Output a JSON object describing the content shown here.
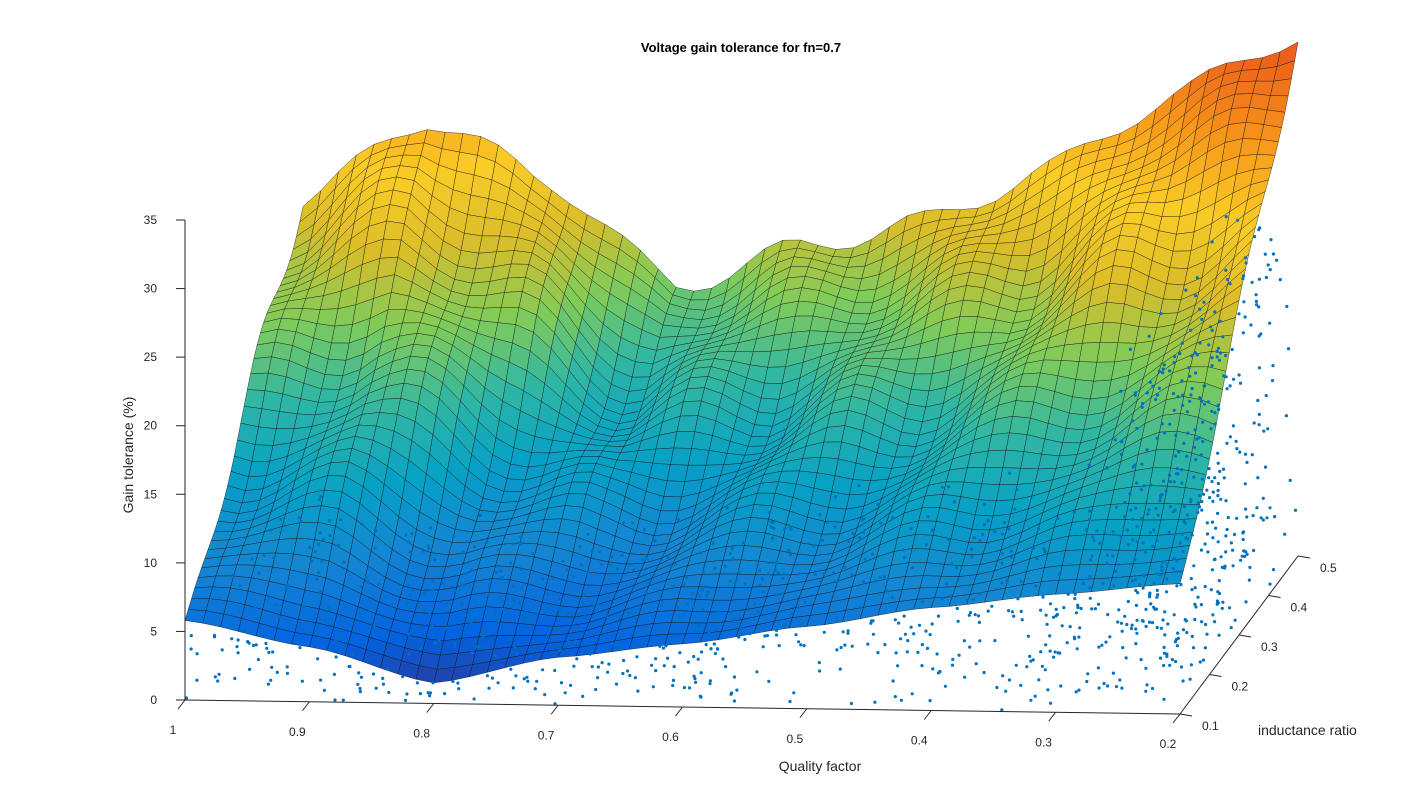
{
  "chart_data": {
    "type": "surface",
    "title": "Voltage gain tolerance for fn=0.7",
    "xlabel": "Quality factor",
    "ylabel": "inductance ratio",
    "zlabel": "Gain tolerance (%)",
    "x_ticks": [
      "1",
      "0.9",
      "0.8",
      "0.7",
      "0.6",
      "0.5",
      "0.4",
      "0.3",
      "0.2"
    ],
    "y_ticks": [
      "0.1",
      "0.2",
      "0.3",
      "0.4",
      "0.5"
    ],
    "z_ticks": [
      "0",
      "5",
      "10",
      "15",
      "20",
      "25",
      "30",
      "35"
    ],
    "xlim": [
      0.2,
      1.0
    ],
    "ylim": [
      0.1,
      0.5
    ],
    "zlim": [
      0,
      35
    ],
    "x_reversed": true,
    "grid": false,
    "colormap": "parula",
    "scatter_color": "#0072BD",
    "front_edge_profile": {
      "quality_factor": [
        1.0,
        0.9,
        0.8,
        0.7,
        0.6,
        0.5,
        0.4,
        0.3,
        0.2
      ],
      "gain_tolerance": [
        5.8,
        4.0,
        1.5,
        3.5,
        4.6,
        6.0,
        7.5,
        8.6,
        9.5
      ]
    },
    "back_edge_profile": {
      "quality_factor": [
        1.0,
        0.9,
        0.8,
        0.7,
        0.6,
        0.5,
        0.4,
        0.3,
        0.2
      ],
      "gain_tolerance": [
        25.0,
        31.0,
        26.5,
        19.0,
        22.0,
        24.0,
        28.0,
        33.5,
        38.0
      ]
    }
  }
}
